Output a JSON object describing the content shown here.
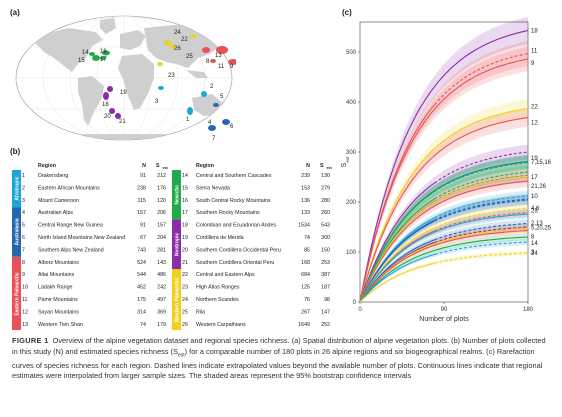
{
  "panels": {
    "a": "(a)",
    "b": "(b)",
    "c": "(c)"
  },
  "map": {
    "labels": [
      {
        "n": "1"
      },
      {
        "n": "2"
      },
      {
        "n": "3"
      },
      {
        "n": "4"
      },
      {
        "n": "5"
      },
      {
        "n": "6"
      },
      {
        "n": "7"
      },
      {
        "n": "8"
      },
      {
        "n": "9"
      },
      {
        "n": "10"
      },
      {
        "n": "11"
      },
      {
        "n": "12"
      },
      {
        "n": "13"
      },
      {
        "n": "14"
      },
      {
        "n": "15"
      },
      {
        "n": "16"
      },
      {
        "n": "17"
      },
      {
        "n": "18"
      },
      {
        "n": "19"
      },
      {
        "n": "20"
      },
      {
        "n": "21"
      },
      {
        "n": "22"
      },
      {
        "n": "23"
      },
      {
        "n": "24"
      },
      {
        "n": "25"
      },
      {
        "n": "26"
      }
    ]
  },
  "table": {
    "header": {
      "region": "Region",
      "n": "N",
      "s": "S",
      "s_sub": "est"
    },
    "realms_left": [
      {
        "name": "Afrotropic",
        "color": "#1aa7d6"
      },
      {
        "name": "Australasia",
        "color": "#2468b0"
      },
      {
        "name": "Eastern Palearctic",
        "color": "#e8515a"
      }
    ],
    "realms_right": [
      {
        "name": "Nearctic",
        "color": "#21a94b"
      },
      {
        "name": "Neotropic",
        "color": "#8b2ca8"
      },
      {
        "name": "Western Palearctic",
        "color": "#f0d21d"
      }
    ],
    "left_rows": [
      {
        "id": "1",
        "region": "Drakensberg",
        "n": "91",
        "s": "212"
      },
      {
        "id": "2",
        "region": "Eastern African Mountains",
        "n": "238",
        "s": "176"
      },
      {
        "id": "3",
        "region": "Mount Cameroon",
        "n": "115",
        "s": "120"
      },
      {
        "id": "4",
        "region": "Australian Alps",
        "n": "157",
        "s": "206"
      },
      {
        "id": "5",
        "region": "Central Range New Guinea",
        "n": "91",
        "s": "157"
      },
      {
        "id": "6",
        "region": "North Island Mountains New Zealand",
        "n": "67",
        "s": "204"
      },
      {
        "id": "7",
        "region": "Southern Alps New Zealand",
        "n": "743",
        "s": "281"
      },
      {
        "id": "8",
        "region": "Alborz Mountains",
        "n": "524",
        "s": "143"
      },
      {
        "id": "9",
        "region": "Altai Mountains",
        "n": "544",
        "s": "486"
      },
      {
        "id": "10",
        "region": "Ladakh Range",
        "n": "452",
        "s": "242"
      },
      {
        "id": "11",
        "region": "Pamir Mountains",
        "n": "175",
        "s": "497"
      },
      {
        "id": "12",
        "region": "Sayan Mountains",
        "n": "314",
        "s": "369"
      },
      {
        "id": "13",
        "region": "Western Tien Shan",
        "n": "74",
        "s": "179"
      }
    ],
    "right_rows": [
      {
        "id": "14",
        "region": "Central and Southern Cascades",
        "n": "239",
        "s": "130"
      },
      {
        "id": "15",
        "region": "Sierra Nevada",
        "n": "153",
        "s": "279"
      },
      {
        "id": "16",
        "region": "South Central Rocky Mountains",
        "n": "136",
        "s": "280"
      },
      {
        "id": "17",
        "region": "Southern Rocky Mountains",
        "n": "133",
        "s": "260"
      },
      {
        "id": "18",
        "region": "Colombian and Ecuadorian Andes",
        "n": "1534",
        "s": "543"
      },
      {
        "id": "19",
        "region": "Cordillera de Mérida",
        "n": "74",
        "s": "300"
      },
      {
        "id": "20",
        "region": "Southern Cordillera Occidental Peru",
        "n": "85",
        "s": "150"
      },
      {
        "id": "21",
        "region": "Southern Cordillera Oriental Peru",
        "n": "168",
        "s": "253"
      },
      {
        "id": "22",
        "region": "Central and Eastern Alps",
        "n": "684",
        "s": "387"
      },
      {
        "id": "23",
        "region": "High Atlas Ranges",
        "n": "125",
        "s": "187"
      },
      {
        "id": "24",
        "region": "Northern Scandes",
        "n": "76",
        "s": "98"
      },
      {
        "id": "25",
        "region": "Rila",
        "n": "267",
        "s": "147"
      },
      {
        "id": "26",
        "region": "Western Carpathians",
        "n": "1649",
        "s": "252"
      }
    ]
  },
  "chart_data": {
    "type": "line",
    "xlabel": "Number of plots",
    "ylabel": "S",
    "ylabel_sub": "est",
    "xlim": [
      0,
      180
    ],
    "ylim": [
      0,
      560
    ],
    "xticks": [
      0,
      90,
      180
    ],
    "yticks": [
      0,
      100,
      200,
      300,
      400,
      500
    ],
    "series": [
      {
        "id": "18",
        "end": 543,
        "color": "#8b2ca8",
        "extrap": false,
        "label": "18"
      },
      {
        "id": "11",
        "end": 497,
        "color": "#e8515a",
        "extrap": true,
        "label": "11"
      },
      {
        "id": "9",
        "end": 486,
        "color": "#e8515a",
        "extrap": false,
        "label": "9"
      },
      {
        "id": "22",
        "end": 387,
        "color": "#f0d21d",
        "extrap": false,
        "label": "22"
      },
      {
        "id": "12",
        "end": 369,
        "color": "#e8515a",
        "extrap": false,
        "label": "12"
      },
      {
        "id": "19",
        "end": 300,
        "color": "#8b2ca8",
        "extrap": true,
        "label": "19"
      },
      {
        "id": "7",
        "end": 281,
        "color": "#2468b0",
        "extrap": false,
        "label": ""
      },
      {
        "id": "15",
        "end": 279,
        "color": "#21a94b",
        "extrap": true,
        "label": ""
      },
      {
        "id": "16",
        "end": 280,
        "color": "#21a94b",
        "extrap": true,
        "label": "7,15,16"
      },
      {
        "id": "17",
        "end": 260,
        "color": "#21a94b",
        "extrap": true,
        "label": "17"
      },
      {
        "id": "21",
        "end": 253,
        "color": "#8b2ca8",
        "extrap": true,
        "label": ""
      },
      {
        "id": "26",
        "end": 252,
        "color": "#f0d21d",
        "extrap": false,
        "label": "21,26"
      },
      {
        "id": "10",
        "end": 242,
        "color": "#e8515a",
        "extrap": false,
        "label": "10"
      },
      {
        "id": "1",
        "end": 212,
        "color": "#1aa7d6",
        "extrap": true,
        "label": "1"
      },
      {
        "id": "4",
        "end": 206,
        "color": "#2468b0",
        "extrap": true,
        "label": ""
      },
      {
        "id": "6",
        "end": 204,
        "color": "#2468b0",
        "extrap": true,
        "label": "4,6"
      },
      {
        "id": "23",
        "end": 187,
        "color": "#f0d21d",
        "extrap": true,
        "label": "23"
      },
      {
        "id": "13",
        "end": 179,
        "color": "#e8515a",
        "extrap": true,
        "label": ""
      },
      {
        "id": "2",
        "end": 176,
        "color": "#1aa7d6",
        "extrap": false,
        "label": "2,13"
      },
      {
        "id": "5",
        "end": 157,
        "color": "#2468b0",
        "extrap": true,
        "label": ""
      },
      {
        "id": "20",
        "end": 150,
        "color": "#8b2ca8",
        "extrap": true,
        "label": ""
      },
      {
        "id": "25",
        "end": 147,
        "color": "#f0d21d",
        "extrap": false,
        "label": "5,20,25"
      },
      {
        "id": "8",
        "end": 143,
        "color": "#e8515a",
        "extrap": false,
        "label": "8"
      },
      {
        "id": "14",
        "end": 130,
        "color": "#21a94b",
        "extrap": false,
        "label": "14"
      },
      {
        "id": "3",
        "end": 120,
        "color": "#1aa7d6",
        "extrap": true,
        "label": "3"
      },
      {
        "id": "24",
        "end": 98,
        "color": "#f0d21d",
        "extrap": true,
        "label": "24"
      }
    ]
  },
  "caption": {
    "figure": "FIGURE 1",
    "text": "Overview of the alpine vegetation dataset and regional species richness. (a) Spatial distribution of alpine vegetation plots. (b) Number of plots collected in this study (N) and estimated species richness (S",
    "text_sub": "est",
    "text2": ") for a comparable number of 180 plots in 26 alpine regions and six biogeographical realms. (c) Rarefaction curves of species richness for each region. Dashed lines indicate extrapolated values beyond the available number of plots. Continuous lines indicate that regional estimates were interpolated from larger sample sizes. The shaded areas represent the 95% bootstrap confidence intervals"
  }
}
